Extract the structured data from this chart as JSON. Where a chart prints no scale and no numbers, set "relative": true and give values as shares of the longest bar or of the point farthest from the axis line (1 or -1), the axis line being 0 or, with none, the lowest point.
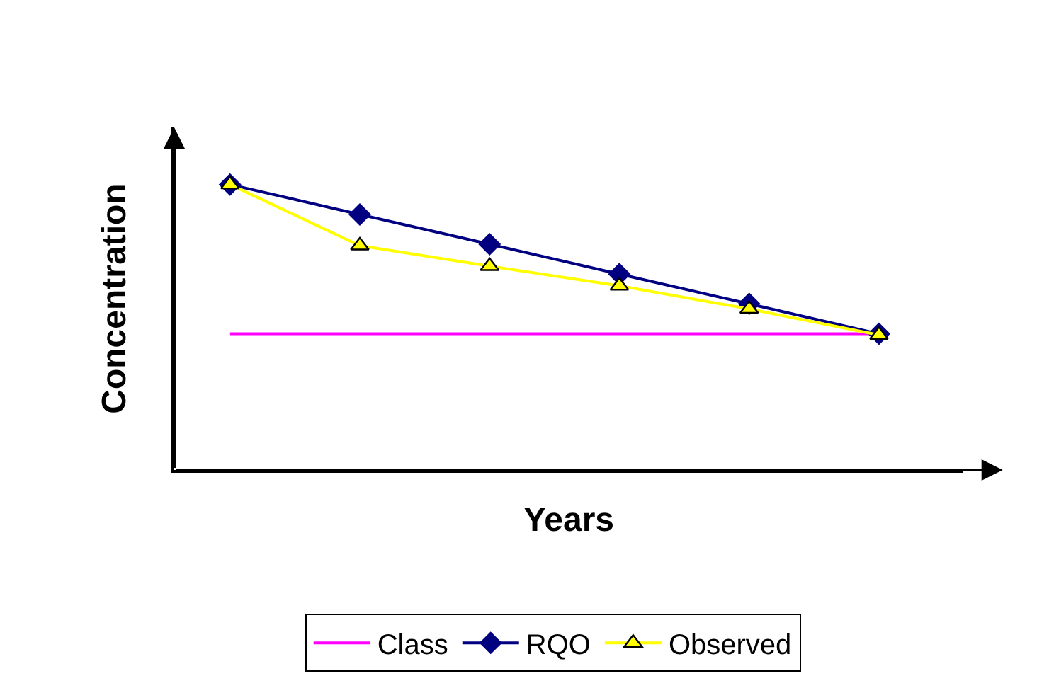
{
  "chart_data": {
    "type": "line",
    "relative": true,
    "xlabel": "Years",
    "ylabel": "Concentration",
    "categories": [
      null,
      null,
      null,
      null,
      null,
      null
    ],
    "legend": "bottom",
    "tick_labels": false,
    "series": [
      {
        "name": "Class",
        "color": "#ff00ff",
        "marker": "none",
        "values": [
          0.477,
          0.477,
          0.477,
          0.477,
          0.477,
          0.477
        ]
      },
      {
        "name": "RQO",
        "color": "#000080",
        "marker": "diamond",
        "values": [
          1,
          0.895,
          0.791,
          0.686,
          0.582,
          0.477
        ]
      },
      {
        "name": "Observed",
        "color": "#ffff00",
        "marker": "triangle",
        "values": [
          1,
          0.786,
          0.714,
          0.645,
          0.564,
          0.473
        ]
      }
    ]
  }
}
